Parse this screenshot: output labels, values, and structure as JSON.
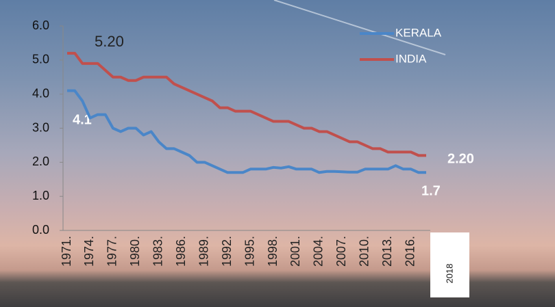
{
  "chart_data": {
    "type": "line",
    "categories": [
      "1971.",
      null,
      null,
      "1974.",
      null,
      null,
      "1977.",
      null,
      null,
      "1980.",
      null,
      null,
      "1983.",
      null,
      null,
      "1986.",
      null,
      null,
      "1989.",
      null,
      null,
      "1992.",
      null,
      null,
      "1995.",
      null,
      null,
      "1998.",
      null,
      null,
      "2001.",
      null,
      null,
      "2004.",
      null,
      null,
      "2007.",
      null,
      null,
      "2010.",
      null,
      null,
      "2013.",
      null,
      null,
      "2016.",
      null,
      "2018"
    ],
    "series": [
      {
        "name": "KERALA",
        "color": "#4a86c8",
        "values": [
          4.1,
          4.1,
          3.8,
          3.3,
          3.4,
          3.4,
          3.0,
          2.9,
          3.0,
          3.0,
          2.8,
          2.9,
          2.6,
          2.4,
          2.4,
          2.3,
          2.2,
          2.0,
          2.0,
          1.9,
          1.8,
          1.7,
          1.7,
          1.7,
          1.8,
          1.8,
          1.8,
          1.85,
          1.83,
          1.87,
          1.8,
          1.8,
          1.8,
          1.7,
          1.73,
          1.73,
          1.72,
          1.71,
          1.71,
          1.8,
          1.8,
          1.8,
          1.8,
          1.9,
          1.8,
          1.8,
          1.7,
          1.7
        ]
      },
      {
        "name": "INDIA",
        "color": "#c0504d",
        "values": [
          5.2,
          5.2,
          4.9,
          4.9,
          4.9,
          4.7,
          4.5,
          4.5,
          4.4,
          4.4,
          4.5,
          4.5,
          4.5,
          4.5,
          4.3,
          4.2,
          4.1,
          4.0,
          3.9,
          3.8,
          3.6,
          3.6,
          3.5,
          3.5,
          3.5,
          3.4,
          3.3,
          3.2,
          3.2,
          3.2,
          3.1,
          3.0,
          3.0,
          2.9,
          2.9,
          2.8,
          2.7,
          2.6,
          2.6,
          2.5,
          2.4,
          2.4,
          2.3,
          2.3,
          2.3,
          2.3,
          2.2,
          2.2
        ]
      }
    ],
    "ylim": [
      0,
      6
    ],
    "yticks": [
      {
        "value": 0,
        "label": "0.0"
      },
      {
        "value": 1,
        "label": "1.0"
      },
      {
        "value": 2,
        "label": "2.0"
      },
      {
        "value": 3,
        "label": "3.0"
      },
      {
        "value": 4,
        "label": "4.0"
      },
      {
        "value": 5,
        "label": "5.0"
      },
      {
        "value": 6,
        "label": "6.0"
      }
    ],
    "annotations": [
      "5.20",
      "4.1",
      "2.20",
      "1.7"
    ],
    "legend": "top-right"
  }
}
